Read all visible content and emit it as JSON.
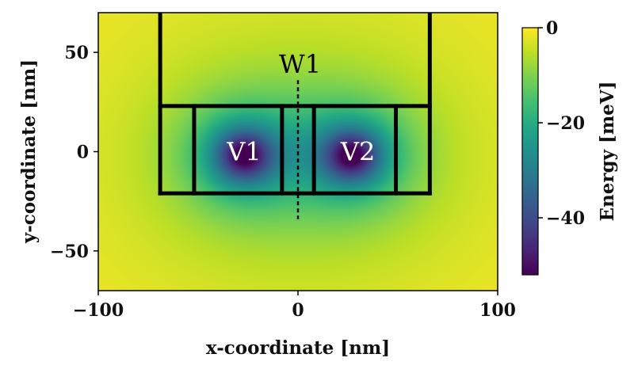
{
  "chart_data": {
    "type": "heatmap",
    "xlabel": "x-coordinate [nm]",
    "ylabel": "y-coordinate [nm]",
    "xlim": [
      -100,
      100
    ],
    "ylim": [
      -70,
      70
    ],
    "x_ticks": [
      -100,
      0,
      100
    ],
    "x_tick_labels": [
      "−100",
      "0",
      "100"
    ],
    "y_ticks": [
      50,
      0,
      -50
    ],
    "y_tick_labels": [
      "50",
      "0",
      "−50"
    ],
    "colorbar": {
      "label": "Energy [meV]",
      "range": [
        -52,
        0
      ],
      "ticks": [
        0,
        -20,
        -40
      ],
      "tick_labels": [
        "0",
        "−20",
        "−40"
      ],
      "colormap": "viridis"
    },
    "wells": [
      {
        "label": "V1",
        "x": -27,
        "y": -2,
        "depth": -52
      },
      {
        "label": "V2",
        "x": 27,
        "y": -2,
        "depth": -52
      }
    ],
    "gate_outline": {
      "outer": {
        "x": [
          -69,
          66
        ],
        "y": [
          -21,
          70
        ]
      },
      "lower_box_top_y": 23,
      "dividers_x": [
        -52,
        -8,
        8,
        49
      ]
    },
    "cut_line": {
      "label": "W1",
      "x": 0,
      "y": [
        -34,
        36
      ],
      "style": "dashed"
    },
    "annotations": [
      {
        "text": "V1",
        "x": -27,
        "y": 0,
        "color": "#ffffff"
      },
      {
        "text": "V2",
        "x": 30,
        "y": 0,
        "color": "#ffffff"
      },
      {
        "text": "W1",
        "x": 1,
        "y": 44,
        "color": "#000000"
      }
    ]
  }
}
